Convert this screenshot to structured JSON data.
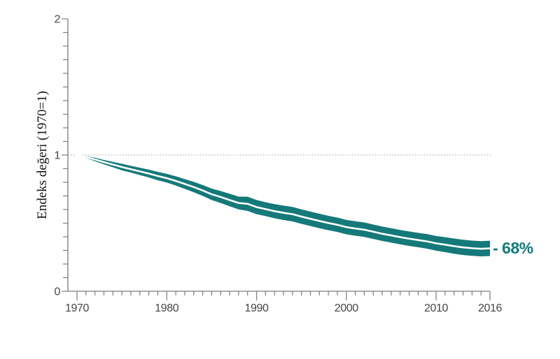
{
  "chart_data": {
    "type": "area",
    "title": "",
    "xlabel": "",
    "ylabel": "Endeks değeri (1970=1)",
    "xlim": [
      1970,
      2016
    ],
    "ylim": [
      0,
      2
    ],
    "grid": "off",
    "legend": "none",
    "x_major_ticks": [
      1970,
      1980,
      1990,
      2000,
      2010,
      2016
    ],
    "x_minor_tick_step": 1,
    "y_major_ticks": [
      0,
      1,
      2
    ],
    "y_minor_tick_step": 0.1,
    "reference_line_y": 1,
    "annotation": "- 68%",
    "colors": {
      "band": "#15797a",
      "center_line": "#ffffff",
      "annotation": "#117a7c"
    },
    "x": [
      1970,
      1971,
      1972,
      1973,
      1974,
      1975,
      1976,
      1977,
      1978,
      1979,
      1980,
      1981,
      1982,
      1983,
      1984,
      1985,
      1986,
      1987,
      1988,
      1989,
      1990,
      1991,
      1992,
      1993,
      1994,
      1995,
      1996,
      1997,
      1998,
      1999,
      2000,
      2001,
      2002,
      2003,
      2004,
      2005,
      2006,
      2007,
      2008,
      2009,
      2010,
      2011,
      2012,
      2013,
      2014,
      2015,
      2016
    ],
    "series": [
      {
        "name": "index",
        "values": [
          1.0,
          0.986,
          0.968,
          0.948,
          0.93,
          0.912,
          0.896,
          0.88,
          0.864,
          0.846,
          0.83,
          0.81,
          0.788,
          0.765,
          0.74,
          0.712,
          0.692,
          0.67,
          0.648,
          0.642,
          0.618,
          0.603,
          0.588,
          0.576,
          0.566,
          0.548,
          0.532,
          0.516,
          0.501,
          0.488,
          0.471,
          0.461,
          0.452,
          0.437,
          0.422,
          0.41,
          0.397,
          0.386,
          0.376,
          0.366,
          0.352,
          0.342,
          0.331,
          0.322,
          0.316,
          0.312,
          0.315
        ]
      },
      {
        "name": "upper_ci",
        "values": [
          1.0,
          0.993,
          0.981,
          0.964,
          0.95,
          0.936,
          0.921,
          0.907,
          0.893,
          0.877,
          0.862,
          0.844,
          0.824,
          0.803,
          0.78,
          0.754,
          0.736,
          0.716,
          0.695,
          0.694,
          0.67,
          0.654,
          0.64,
          0.629,
          0.619,
          0.601,
          0.585,
          0.569,
          0.554,
          0.541,
          0.524,
          0.514,
          0.505,
          0.49,
          0.475,
          0.463,
          0.45,
          0.439,
          0.429,
          0.42,
          0.406,
          0.397,
          0.387,
          0.378,
          0.372,
          0.368,
          0.371
        ]
      },
      {
        "name": "lower_ci",
        "values": [
          1.0,
          0.979,
          0.955,
          0.932,
          0.91,
          0.888,
          0.871,
          0.853,
          0.835,
          0.815,
          0.798,
          0.776,
          0.752,
          0.727,
          0.7,
          0.67,
          0.648,
          0.624,
          0.601,
          0.59,
          0.566,
          0.552,
          0.536,
          0.523,
          0.513,
          0.495,
          0.479,
          0.463,
          0.448,
          0.435,
          0.418,
          0.408,
          0.399,
          0.384,
          0.369,
          0.357,
          0.344,
          0.333,
          0.323,
          0.312,
          0.298,
          0.287,
          0.275,
          0.266,
          0.26,
          0.256,
          0.259
        ]
      }
    ]
  }
}
